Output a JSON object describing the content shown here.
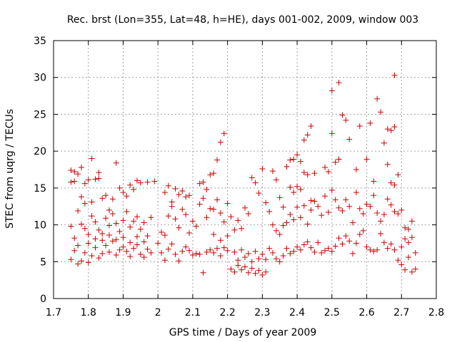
{
  "chart_data": {
    "type": "scatter",
    "title": "Rec. brst (Lon=355, Lat=48, h=HE), days 001-002, 2009, window 003",
    "xlabel": "GPS time / Days of year 2009",
    "ylabel": "STEC from uqrg / TECUs",
    "xlim": [
      1.7,
      2.8
    ],
    "ylim": [
      0,
      35
    ],
    "xticks": [
      "1.7",
      "1.8",
      "1.9",
      "2",
      "2.1",
      "2.2",
      "2.3",
      "2.4",
      "2.5",
      "2.6",
      "2.7",
      "2.8"
    ],
    "yticks": [
      "0",
      "5",
      "10",
      "15",
      "20",
      "25",
      "30",
      "35"
    ],
    "grid": true,
    "marker": "+",
    "color": "#cc0000",
    "series": [
      {
        "points": [
          [
            1.75,
            17.4
          ],
          [
            1.76,
            17.2
          ],
          [
            1.77,
            16.9
          ],
          [
            1.78,
            17.8
          ],
          [
            1.76,
            15.9
          ],
          [
            1.75,
            15.8
          ],
          [
            1.79,
            15.6
          ],
          [
            1.8,
            16.1
          ],
          [
            1.81,
            19.0
          ],
          [
            1.82,
            16.2
          ],
          [
            1.83,
            17.1
          ],
          [
            1.83,
            16.3
          ],
          [
            1.77,
            11.9
          ],
          [
            1.78,
            13.8
          ],
          [
            1.79,
            12.9
          ],
          [
            1.81,
            13.1
          ],
          [
            1.84,
            13.6
          ],
          [
            1.85,
            14.0
          ],
          [
            1.86,
            12.0
          ],
          [
            1.87,
            13.5
          ],
          [
            1.88,
            18.4
          ],
          [
            1.89,
            15.0
          ],
          [
            1.9,
            14.4
          ],
          [
            1.91,
            13.9
          ],
          [
            1.92,
            15.4
          ],
          [
            1.93,
            14.8
          ],
          [
            1.94,
            16.0
          ],
          [
            1.95,
            15.7
          ],
          [
            1.97,
            15.8
          ],
          [
            1.99,
            15.9
          ],
          [
            1.75,
            9.8
          ],
          [
            1.76,
            8.2
          ],
          [
            1.77,
            7.2
          ],
          [
            1.78,
            10.1
          ],
          [
            1.79,
            9.5
          ],
          [
            1.8,
            8.7
          ],
          [
            1.81,
            11.2
          ],
          [
            1.82,
            10.4
          ],
          [
            1.83,
            9.3
          ],
          [
            1.84,
            8.8
          ],
          [
            1.85,
            10.9
          ],
          [
            1.86,
            9.9
          ],
          [
            1.87,
            11.5
          ],
          [
            1.88,
            10.2
          ],
          [
            1.89,
            9.1
          ],
          [
            1.9,
            10.6
          ],
          [
            1.91,
            11.8
          ],
          [
            1.92,
            9.7
          ],
          [
            1.93,
            10.5
          ],
          [
            1.94,
            11.1
          ],
          [
            1.95,
            9.4
          ],
          [
            1.96,
            10.3
          ],
          [
            1.97,
            8.5
          ],
          [
            1.98,
            11.0
          ],
          [
            1.75,
            5.3
          ],
          [
            1.76,
            6.5
          ],
          [
            1.77,
            4.7
          ],
          [
            1.78,
            5.1
          ],
          [
            1.79,
            6.2
          ],
          [
            1.8,
            4.9
          ],
          [
            1.81,
            5.8
          ],
          [
            1.82,
            6.9
          ],
          [
            1.83,
            5.5
          ],
          [
            1.84,
            6.1
          ],
          [
            1.85,
            7.2
          ],
          [
            1.86,
            6.3
          ],
          [
            1.87,
            7.8
          ],
          [
            1.88,
            5.9
          ],
          [
            1.89,
            6.6
          ],
          [
            1.9,
            7.0
          ],
          [
            1.91,
            6.4
          ],
          [
            1.92,
            5.7
          ],
          [
            1.93,
            6.8
          ],
          [
            1.94,
            7.3
          ],
          [
            1.95,
            6.0
          ],
          [
            1.96,
            5.6
          ],
          [
            1.97,
            6.7
          ],
          [
            1.98,
            6.2
          ],
          [
            2.0,
            7.5
          ],
          [
            1.8,
            7.5
          ],
          [
            1.82,
            8.1
          ],
          [
            1.84,
            7.9
          ],
          [
            1.86,
            8.6
          ],
          [
            1.88,
            8.0
          ],
          [
            1.9,
            8.3
          ],
          [
            1.92,
            7.6
          ],
          [
            1.94,
            8.4
          ],
          [
            1.96,
            7.7
          ],
          [
            2.01,
            9.0
          ],
          [
            2.02,
            8.6
          ],
          [
            2.03,
            11.2
          ],
          [
            2.04,
            12.5
          ],
          [
            2.05,
            10.8
          ],
          [
            2.06,
            9.6
          ],
          [
            2.07,
            12.1
          ],
          [
            2.08,
            11.4
          ],
          [
            2.09,
            8.9
          ],
          [
            2.1,
            10.5
          ],
          [
            2.11,
            9.8
          ],
          [
            2.12,
            12.8
          ],
          [
            2.13,
            13.6
          ],
          [
            2.14,
            11.0
          ],
          [
            2.15,
            12.2
          ],
          [
            2.02,
            14.4
          ],
          [
            2.03,
            15.3
          ],
          [
            2.04,
            13.1
          ],
          [
            2.05,
            14.9
          ],
          [
            2.06,
            14.1
          ],
          [
            2.07,
            14.6
          ],
          [
            2.08,
            13.8
          ],
          [
            2.09,
            14.0
          ],
          [
            2.12,
            15.6
          ],
          [
            2.13,
            15.8
          ],
          [
            2.14,
            14.8
          ],
          [
            2.01,
            6.2
          ],
          [
            2.02,
            5.2
          ],
          [
            2.03,
            6.7
          ],
          [
            2.04,
            7.4
          ],
          [
            2.05,
            6.0
          ],
          [
            2.06,
            5.1
          ],
          [
            2.07,
            6.4
          ],
          [
            2.08,
            7.0
          ],
          [
            2.09,
            6.5
          ],
          [
            2.1,
            5.9
          ],
          [
            2.11,
            6.1
          ],
          [
            2.12,
            6.0
          ],
          [
            2.13,
            3.5
          ],
          [
            2.14,
            6.3
          ],
          [
            2.15,
            6.6
          ],
          [
            2.16,
            6.2
          ],
          [
            2.17,
            6.8
          ],
          [
            2.18,
            5.8
          ],
          [
            2.19,
            6.9
          ],
          [
            2.2,
            6.5
          ],
          [
            2.16,
            17.0
          ],
          [
            2.17,
            18.8
          ],
          [
            2.18,
            21.2
          ],
          [
            2.19,
            22.4
          ],
          [
            2.15,
            16.8
          ],
          [
            2.16,
            12.1
          ],
          [
            2.17,
            13.4
          ],
          [
            2.18,
            11.6
          ],
          [
            2.19,
            10.4
          ],
          [
            2.2,
            12.9
          ],
          [
            2.21,
            11.1
          ],
          [
            2.22,
            9.3
          ],
          [
            2.16,
            8.7
          ],
          [
            2.18,
            7.9
          ],
          [
            2.2,
            8.5
          ],
          [
            2.21,
            4.0
          ],
          [
            2.22,
            3.6
          ],
          [
            2.23,
            4.5
          ],
          [
            2.24,
            3.9
          ],
          [
            2.25,
            4.3
          ],
          [
            2.26,
            3.5
          ],
          [
            2.27,
            4.1
          ],
          [
            2.28,
            3.4
          ],
          [
            2.29,
            3.8
          ],
          [
            2.3,
            3.2
          ],
          [
            2.31,
            3.6
          ],
          [
            2.22,
            6.3
          ],
          [
            2.23,
            5.2
          ],
          [
            2.24,
            6.6
          ],
          [
            2.25,
            5.6
          ],
          [
            2.26,
            6.1
          ],
          [
            2.27,
            5.0
          ],
          [
            2.28,
            6.4
          ],
          [
            2.29,
            5.4
          ],
          [
            2.3,
            6.0
          ],
          [
            2.31,
            5.3
          ],
          [
            2.32,
            6.8
          ],
          [
            2.33,
            6.2
          ],
          [
            2.34,
            5.4
          ],
          [
            2.35,
            5.0
          ],
          [
            2.36,
            5.8
          ],
          [
            2.23,
            10.6
          ],
          [
            2.24,
            9.5
          ],
          [
            2.25,
            12.3
          ],
          [
            2.26,
            11.5
          ],
          [
            2.27,
            16.4
          ],
          [
            2.28,
            15.7
          ],
          [
            2.29,
            14.3
          ],
          [
            2.3,
            17.6
          ],
          [
            2.31,
            13.0
          ],
          [
            2.32,
            11.8
          ],
          [
            2.33,
            17.3
          ],
          [
            2.34,
            16.1
          ],
          [
            2.35,
            13.7
          ],
          [
            2.36,
            12.4
          ],
          [
            2.37,
            17.9
          ],
          [
            2.38,
            18.8
          ],
          [
            2.39,
            18.9
          ],
          [
            2.4,
            19.5
          ],
          [
            2.41,
            18.6
          ],
          [
            2.42,
            21.5
          ],
          [
            2.43,
            22.2
          ],
          [
            2.44,
            23.4
          ],
          [
            2.38,
            15.1
          ],
          [
            2.39,
            14.4
          ],
          [
            2.4,
            15.2
          ],
          [
            2.41,
            14.8
          ],
          [
            2.42,
            17.1
          ],
          [
            2.43,
            16.8
          ],
          [
            2.44,
            13.3
          ],
          [
            2.45,
            17.0
          ],
          [
            2.33,
            10.0
          ],
          [
            2.34,
            9.2
          ],
          [
            2.35,
            8.7
          ],
          [
            2.36,
            9.9
          ],
          [
            2.37,
            10.3
          ],
          [
            2.38,
            11.4
          ],
          [
            2.39,
            10.7
          ],
          [
            2.4,
            12.4
          ],
          [
            2.41,
            11.0
          ],
          [
            2.42,
            12.6
          ],
          [
            2.43,
            10.1
          ],
          [
            2.44,
            12.0
          ],
          [
            2.45,
            13.2
          ],
          [
            2.46,
            12.5
          ],
          [
            2.47,
            11.3
          ],
          [
            2.48,
            13.9
          ],
          [
            2.49,
            11.7
          ],
          [
            2.37,
            6.8
          ],
          [
            2.38,
            6.1
          ],
          [
            2.39,
            6.4
          ],
          [
            2.4,
            7.0
          ],
          [
            2.41,
            6.6
          ],
          [
            2.42,
            7.3
          ],
          [
            2.43,
            7.7
          ],
          [
            2.44,
            6.9
          ],
          [
            2.45,
            6.3
          ],
          [
            2.46,
            7.6
          ],
          [
            2.47,
            6.2
          ],
          [
            2.48,
            6.5
          ],
          [
            2.49,
            6.8
          ],
          [
            2.5,
            6.4
          ],
          [
            2.51,
            7.1
          ],
          [
            2.48,
            17.8
          ],
          [
            2.49,
            17.2
          ],
          [
            2.5,
            22.4
          ],
          [
            2.5,
            28.2
          ],
          [
            2.52,
            29.3
          ],
          [
            2.51,
            18.5
          ],
          [
            2.52,
            18.9
          ],
          [
            2.53,
            24.9
          ],
          [
            2.54,
            24.2
          ],
          [
            2.55,
            21.6
          ],
          [
            2.57,
            17.5
          ],
          [
            2.58,
            23.4
          ],
          [
            2.6,
            18.9
          ],
          [
            2.61,
            23.8
          ],
          [
            2.62,
            15.9
          ],
          [
            2.63,
            27.1
          ],
          [
            2.64,
            25.3
          ],
          [
            2.65,
            21.1
          ],
          [
            2.66,
            23.0
          ],
          [
            2.67,
            22.8
          ],
          [
            2.68,
            30.3
          ],
          [
            2.68,
            23.3
          ],
          [
            2.66,
            18.2
          ],
          [
            2.67,
            15.7
          ],
          [
            2.68,
            15.4
          ],
          [
            2.69,
            16.8
          ],
          [
            2.5,
            14.7
          ],
          [
            2.51,
            13.4
          ],
          [
            2.52,
            12.3
          ],
          [
            2.53,
            11.9
          ],
          [
            2.54,
            13.4
          ],
          [
            2.55,
            12.5
          ],
          [
            2.56,
            10.3
          ],
          [
            2.57,
            14.4
          ],
          [
            2.58,
            12.2
          ],
          [
            2.59,
            11.5
          ],
          [
            2.6,
            12.8
          ],
          [
            2.61,
            12.5
          ],
          [
            2.62,
            14.0
          ],
          [
            2.63,
            11.6
          ],
          [
            2.64,
            10.5
          ],
          [
            2.65,
            11.4
          ],
          [
            2.66,
            13.5
          ],
          [
            2.67,
            12.7
          ],
          [
            2.68,
            11.8
          ],
          [
            2.69,
            11.5
          ],
          [
            2.7,
            12.0
          ],
          [
            2.71,
            9.6
          ],
          [
            2.72,
            9.4
          ],
          [
            2.73,
            10.5
          ],
          [
            2.52,
            8.2
          ],
          [
            2.53,
            7.4
          ],
          [
            2.54,
            8.5
          ],
          [
            2.55,
            7.8
          ],
          [
            2.56,
            6.1
          ],
          [
            2.57,
            7.5
          ],
          [
            2.58,
            8.7
          ],
          [
            2.59,
            9.2
          ],
          [
            2.6,
            7.0
          ],
          [
            2.61,
            6.6
          ],
          [
            2.62,
            6.4
          ],
          [
            2.63,
            6.6
          ],
          [
            2.64,
            8.8
          ],
          [
            2.65,
            7.6
          ],
          [
            2.66,
            6.8
          ],
          [
            2.67,
            7.4
          ],
          [
            2.68,
            6.6
          ],
          [
            2.69,
            5.2
          ],
          [
            2.7,
            4.6
          ],
          [
            2.71,
            3.9
          ],
          [
            2.72,
            5.6
          ],
          [
            2.73,
            3.6
          ],
          [
            2.74,
            4.0
          ],
          [
            2.7,
            7.0
          ],
          [
            2.71,
            8.1
          ],
          [
            2.72,
            7.6
          ],
          [
            2.73,
            8.3
          ],
          [
            2.74,
            6.2
          ]
        ]
      }
    ]
  }
}
